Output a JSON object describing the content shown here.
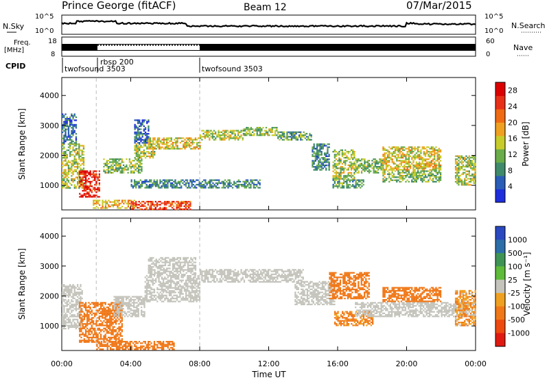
{
  "header": {
    "station": "Prince George (fitACF)",
    "beam": "Beam 12",
    "date": "07/Mar/2015"
  },
  "sky_panel": {
    "left_label": "N.Sky",
    "right_label": "N.Search",
    "tick_top": "10^5",
    "tick_bottom": "10^0"
  },
  "freq_panel": {
    "left_label_1": "Freq.",
    "left_label_2": "[MHz]",
    "left_ticks": [
      "18",
      "8"
    ],
    "right_ticks": [
      "60",
      "0"
    ],
    "right_label": "Nave"
  },
  "cpid": {
    "label": "CPID",
    "segments": [
      {
        "name": "twofsound 3503",
        "start": 0,
        "end": 2
      },
      {
        "name": "rbsp 200",
        "start": 2,
        "end": 8
      },
      {
        "name": "twofsound 3503",
        "start": 8,
        "end": 24
      }
    ]
  },
  "colors": {
    "power": [
      "#1e2edc",
      "#2a5db8",
      "#3f8a6a",
      "#6aab4a",
      "#c8cc2a",
      "#f0a020",
      "#f06a14",
      "#e83018",
      "#dd0000"
    ],
    "velocity": [
      "#2a48c0",
      "#2c6ea8",
      "#3f9455",
      "#5fbb3a",
      "#c4c4bc",
      "#f0a020",
      "#f07818",
      "#ee4a10",
      "#e01a10"
    ]
  },
  "chart_data": [
    {
      "type": "heatmap",
      "title": "Power",
      "ylabel": "Slant Range [km]",
      "xlabel": "Time UT",
      "xlim": [
        0,
        24
      ],
      "ylim": [
        180,
        4600
      ],
      "x_ticks": [
        "00:00",
        "04:00",
        "08:00",
        "12:00",
        "16:00",
        "20:00",
        "00:00"
      ],
      "x_tick_values": [
        0,
        4,
        8,
        12,
        16,
        20,
        24
      ],
      "y_ticks": [
        1000,
        2000,
        3000,
        4000
      ],
      "colorbar": {
        "label": "Power [dB]",
        "ticks": [
          4,
          8,
          12,
          16,
          20,
          24,
          28
        ],
        "range": [
          0,
          30
        ]
      },
      "vertical_markers": [
        2,
        8
      ],
      "regions": [
        {
          "t0": 0.0,
          "t1": 1.3,
          "r0": 900,
          "r1": 2400,
          "value": 14
        },
        {
          "t0": 0.0,
          "t1": 0.8,
          "r0": 2400,
          "r1": 3400,
          "value": 6
        },
        {
          "t0": 1.0,
          "t1": 2.2,
          "r0": 600,
          "r1": 1500,
          "value": 26
        },
        {
          "t0": 1.8,
          "t1": 4.2,
          "r0": 250,
          "r1": 520,
          "value": 18
        },
        {
          "t0": 4.0,
          "t1": 7.5,
          "r0": 220,
          "r1": 480,
          "value": 24
        },
        {
          "t0": 2.4,
          "t1": 4.6,
          "r0": 1400,
          "r1": 1900,
          "value": 12
        },
        {
          "t0": 4.2,
          "t1": 5.4,
          "r0": 1900,
          "r1": 2400,
          "value": 14
        },
        {
          "t0": 4.2,
          "t1": 5.0,
          "r0": 2400,
          "r1": 3200,
          "value": 6
        },
        {
          "t0": 5.0,
          "t1": 8.0,
          "r0": 2200,
          "r1": 2600,
          "value": 16
        },
        {
          "t0": 8.0,
          "t1": 10.5,
          "r0": 2500,
          "r1": 2850,
          "value": 14
        },
        {
          "t0": 10.5,
          "t1": 12.5,
          "r0": 2650,
          "r1": 2950,
          "value": 12
        },
        {
          "t0": 12.5,
          "t1": 14.5,
          "r0": 2500,
          "r1": 2800,
          "value": 10
        },
        {
          "t0": 14.5,
          "t1": 15.5,
          "r0": 1500,
          "r1": 2400,
          "value": 8
        },
        {
          "t0": 4.0,
          "t1": 11.5,
          "r0": 900,
          "r1": 1200,
          "value": 8
        },
        {
          "t0": 15.7,
          "t1": 17.0,
          "r0": 1200,
          "r1": 2200,
          "value": 14
        },
        {
          "t0": 15.7,
          "t1": 17.5,
          "r0": 900,
          "r1": 1200,
          "value": 10
        },
        {
          "t0": 17.0,
          "t1": 18.6,
          "r0": 1400,
          "r1": 1900,
          "value": 12
        },
        {
          "t0": 18.6,
          "t1": 22.0,
          "r0": 1500,
          "r1": 2300,
          "value": 16
        },
        {
          "t0": 18.6,
          "t1": 22.0,
          "r0": 1100,
          "r1": 1500,
          "value": 12
        },
        {
          "t0": 22.8,
          "t1": 24.0,
          "r0": 1000,
          "r1": 2000,
          "value": 14
        }
      ]
    },
    {
      "type": "heatmap",
      "title": "Velocity",
      "ylabel": "Slant Range [km]",
      "xlabel": "Time UT",
      "xlim": [
        0,
        24
      ],
      "ylim": [
        180,
        4600
      ],
      "x_ticks": [
        "00:00",
        "04:00",
        "08:00",
        "12:00",
        "16:00",
        "20:00",
        "00:00"
      ],
      "x_tick_values": [
        0,
        4,
        8,
        12,
        16,
        20,
        24
      ],
      "y_ticks": [
        1000,
        2000,
        3000,
        4000
      ],
      "colorbar": {
        "label": "Velocity [m s⁻¹]",
        "ticks": [
          1000,
          500,
          100,
          25,
          -25,
          -100,
          -500,
          -1000
        ]
      },
      "vertical_markers": [
        2,
        8
      ],
      "regions": [
        {
          "t0": 0.0,
          "t1": 1.2,
          "r0": 900,
          "r1": 2400,
          "value": 0
        },
        {
          "t0": 1.0,
          "t1": 3.5,
          "r0": 450,
          "r1": 1800,
          "value": -300
        },
        {
          "t0": 2.0,
          "t1": 6.5,
          "r0": 220,
          "r1": 500,
          "value": -300
        },
        {
          "t0": 3.0,
          "t1": 4.8,
          "r0": 1300,
          "r1": 2000,
          "value": 0
        },
        {
          "t0": 4.8,
          "t1": 8.0,
          "r0": 1800,
          "r1": 2700,
          "value": 0
        },
        {
          "t0": 5.0,
          "t1": 7.8,
          "r0": 2700,
          "r1": 3300,
          "value": 0
        },
        {
          "t0": 8.0,
          "t1": 14.0,
          "r0": 2450,
          "r1": 2900,
          "value": 0
        },
        {
          "t0": 13.5,
          "t1": 15.8,
          "r0": 1700,
          "r1": 2500,
          "value": 0
        },
        {
          "t0": 15.5,
          "t1": 17.8,
          "r0": 1900,
          "r1": 2800,
          "value": -300
        },
        {
          "t0": 15.8,
          "t1": 18.0,
          "r0": 1000,
          "r1": 1500,
          "value": -150
        },
        {
          "t0": 17.0,
          "t1": 24.0,
          "r0": 1300,
          "r1": 1800,
          "value": 0
        },
        {
          "t0": 18.6,
          "t1": 22.0,
          "r0": 1800,
          "r1": 2300,
          "value": -300
        },
        {
          "t0": 22.8,
          "t1": 24.0,
          "r0": 1000,
          "r1": 2200,
          "value": -100
        }
      ]
    }
  ]
}
